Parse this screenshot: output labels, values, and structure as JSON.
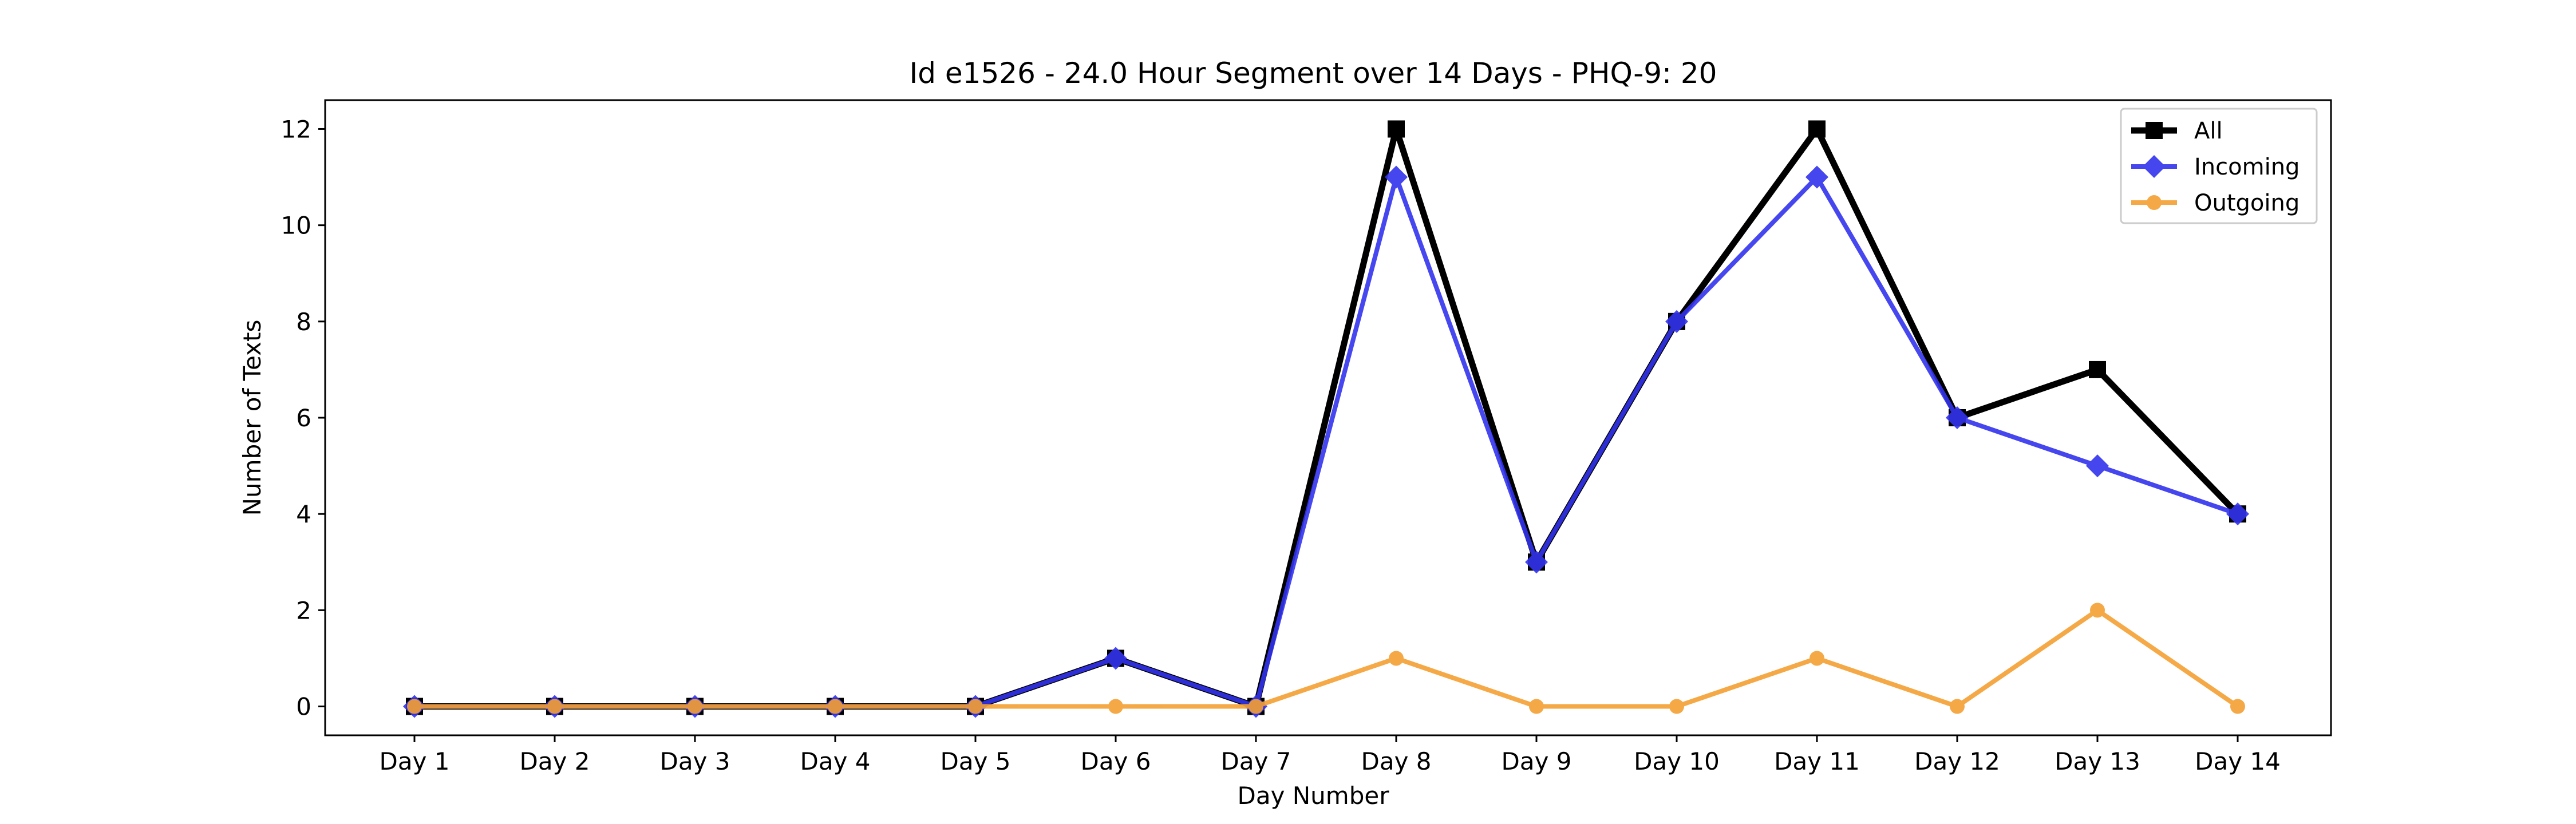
{
  "chart_data": {
    "type": "line",
    "title": "Id e1526 - 24.0 Hour Segment over 14 Days - PHQ-9: 20",
    "xlabel": "Day Number",
    "ylabel": "Number of Texts",
    "categories": [
      "Day 1",
      "Day 2",
      "Day 3",
      "Day 4",
      "Day 5",
      "Day 6",
      "Day 7",
      "Day 8",
      "Day 9",
      "Day 10",
      "Day 11",
      "Day 12",
      "Day 13",
      "Day 14"
    ],
    "ylim": [
      -0.6,
      12.6
    ],
    "yticks": [
      0,
      2,
      4,
      6,
      8,
      10,
      12
    ],
    "grid": false,
    "legend_position": "top-right",
    "series": [
      {
        "name": "All",
        "values": [
          0,
          0,
          0,
          0,
          0,
          1,
          0,
          12,
          3,
          8,
          12,
          6,
          7,
          4
        ],
        "color": "#000000",
        "marker": "square"
      },
      {
        "name": "Incoming",
        "values": [
          0,
          0,
          0,
          0,
          0,
          1,
          0,
          11,
          3,
          8,
          11,
          6,
          5,
          4
        ],
        "color": "#3333ee",
        "marker": "diamond"
      },
      {
        "name": "Outgoing",
        "values": [
          0,
          0,
          0,
          0,
          0,
          0,
          0,
          1,
          0,
          0,
          1,
          0,
          2,
          0
        ],
        "color": "#f5a033",
        "marker": "circle"
      }
    ]
  }
}
